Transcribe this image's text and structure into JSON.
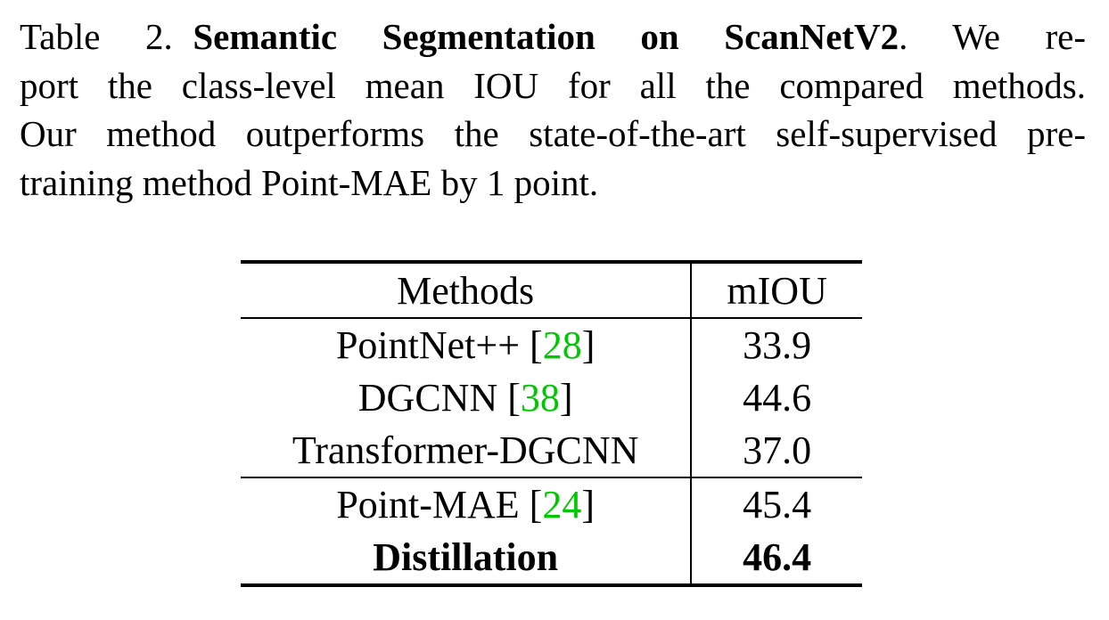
{
  "caption": {
    "label": "Table 2.",
    "title": "Semantic Segmentation on ScanNetV2",
    "title_end": ".",
    "lines": [
      " We re-",
      "port the class-level mean IOU for all the compared methods.",
      "Our method outperforms the state-of-the-art self-supervised pre-",
      "training method Point-MAE by 1 point."
    ]
  },
  "table": {
    "headers": {
      "method": "Methods",
      "miou": "mIOU"
    },
    "group_a": [
      {
        "name": "PointNet++ [",
        "cite": "28",
        "close": "]",
        "miou": "33.9"
      },
      {
        "name": "DGCNN [",
        "cite": "38",
        "close": "]",
        "miou": "44.6"
      },
      {
        "name": "Transformer-DGCNN",
        "cite": "",
        "close": "",
        "miou": "37.0"
      }
    ],
    "group_b": [
      {
        "name": "Point-MAE [",
        "cite": "24",
        "close": "]",
        "miou": "45.4"
      },
      {
        "name": "Distillation",
        "cite": "",
        "close": "",
        "miou": "46.4"
      }
    ]
  },
  "colors": {
    "citation": "#00c800",
    "text": "#000000",
    "background": "#ffffff"
  }
}
